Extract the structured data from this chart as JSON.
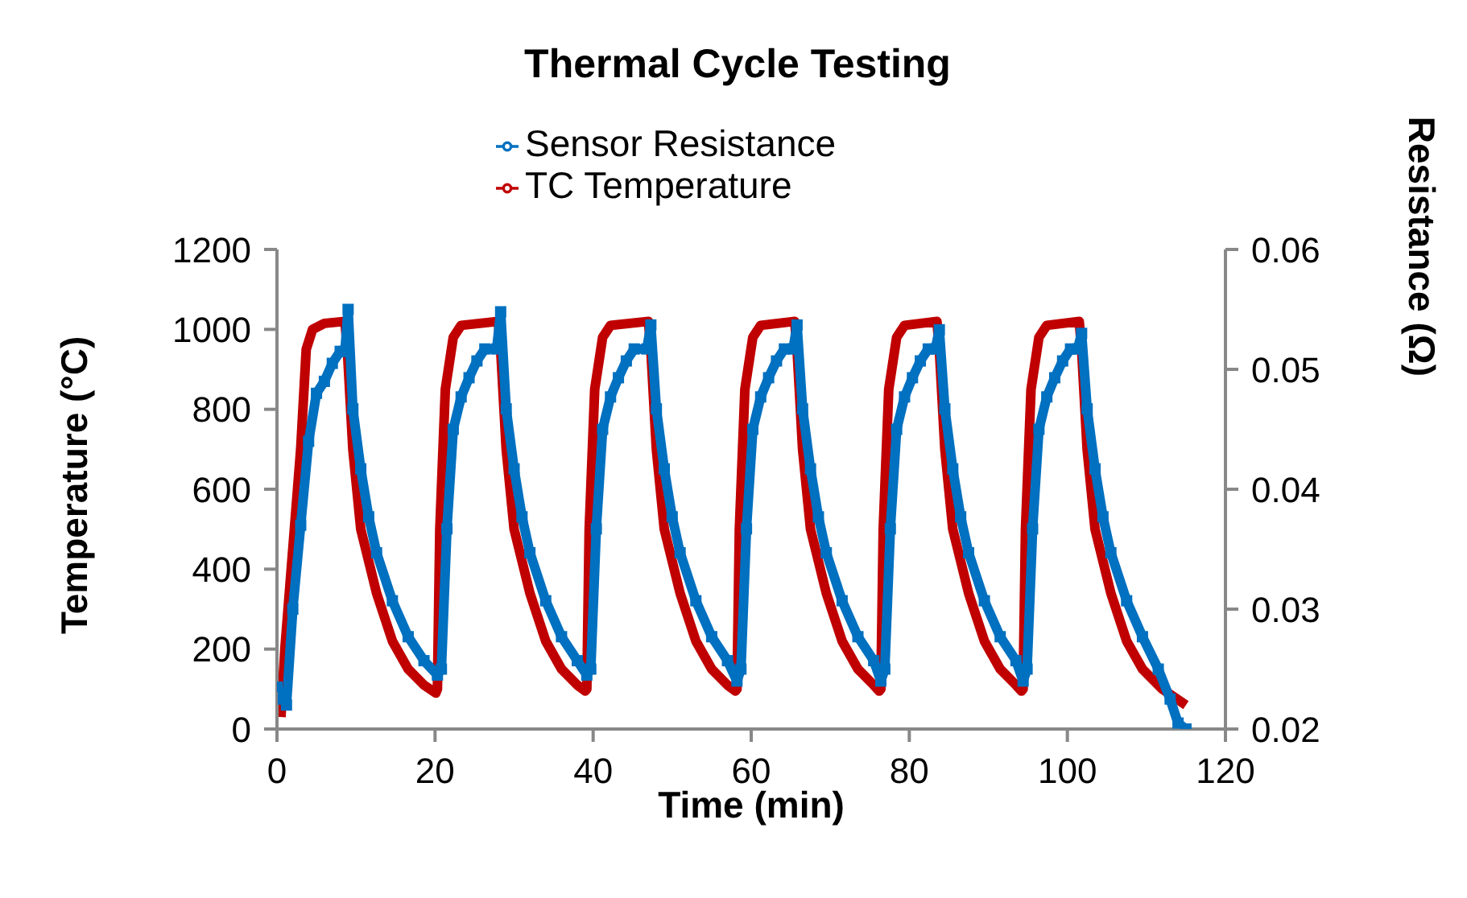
{
  "chart_data": {
    "type": "line",
    "title": "Thermal Cycle Testing",
    "xlabel": "Time (min)",
    "ylabel": "Temperature (°C)",
    "y2label": "Resistance (Ω)",
    "xlim": [
      0,
      120
    ],
    "xticks": [
      0,
      20,
      40,
      60,
      80,
      100,
      120
    ],
    "ylim": [
      0,
      1200
    ],
    "yticks": [
      0,
      200,
      400,
      600,
      800,
      1000,
      1200
    ],
    "y2lim": [
      0.02,
      0.06
    ],
    "y2ticks": [
      0.02,
      0.03,
      0.04,
      0.05,
      0.06
    ],
    "legend": "top",
    "series": [
      {
        "name": "TC Temperature",
        "color": "#c00000",
        "marker": "none",
        "x": [
          0.5,
          1,
          2,
          3,
          3.7,
          4.5,
          6,
          8.6,
          8.9,
          9.6,
          10.6,
          11.6,
          12.6,
          14.6,
          16.6,
          18.6,
          20.1,
          20.3,
          20.6,
          21.3,
          22.3,
          23.3,
          28,
          28.3,
          29,
          30,
          31,
          32,
          34,
          36,
          38,
          39,
          39.2,
          39.5,
          40.2,
          41.2,
          42.2,
          47,
          47.3,
          48,
          49,
          50,
          51,
          53,
          55,
          57,
          58,
          58.2,
          58.5,
          59.2,
          60.2,
          61.2,
          65.5,
          65.8,
          66.5,
          67.5,
          68.5,
          69.5,
          71.5,
          73.5,
          75.5,
          76.2,
          76.4,
          76.7,
          77.4,
          78.4,
          79.4,
          83.5,
          83.8,
          84.5,
          85.5,
          86.5,
          87.5,
          89.5,
          91.5,
          93.5,
          94.2,
          94.4,
          94.7,
          95.4,
          96.4,
          97.4,
          101.5,
          101.8,
          102.5,
          103.5,
          104.5,
          105.5,
          107.5,
          109.5,
          112,
          115
        ],
        "values": [
          30,
          200,
          450,
          700,
          950,
          1000,
          1015,
          1020,
          950,
          700,
          500,
          420,
          340,
          220,
          150,
          110,
          90,
          100,
          500,
          850,
          980,
          1010,
          1020,
          950,
          700,
          500,
          420,
          340,
          220,
          150,
          110,
          95,
          100,
          500,
          850,
          980,
          1010,
          1020,
          950,
          700,
          500,
          420,
          340,
          220,
          150,
          110,
          95,
          100,
          500,
          850,
          980,
          1010,
          1020,
          950,
          700,
          500,
          420,
          340,
          220,
          150,
          110,
          95,
          100,
          500,
          850,
          980,
          1010,
          1020,
          950,
          700,
          500,
          420,
          340,
          220,
          150,
          110,
          95,
          100,
          500,
          850,
          980,
          1010,
          1020,
          950,
          700,
          500,
          420,
          340,
          220,
          150,
          100,
          60
        ]
      },
      {
        "name": "Sensor Resistance",
        "color": "#0070c0",
        "marker": "square",
        "axis": "y2",
        "x": [
          0,
          0.8,
          1.2,
          2,
          3,
          4,
          5,
          6,
          7,
          8,
          8.6,
          9,
          9.6,
          10.6,
          11.6,
          12.6,
          14.6,
          16.6,
          18.6,
          20.3,
          20.8,
          21.5,
          22.3,
          23.3,
          24.3,
          25.3,
          26.3,
          27.8,
          28.3,
          29,
          30,
          31,
          32,
          34,
          36,
          38,
          39.2,
          39.7,
          40.4,
          41.2,
          42.2,
          43.2,
          44.2,
          45.2,
          46.8,
          47.3,
          48,
          49,
          50,
          51,
          53,
          55,
          57,
          58.2,
          58.7,
          59.4,
          60.2,
          61.2,
          62.2,
          63.2,
          64.2,
          65.3,
          65.8,
          66.5,
          67.5,
          68.5,
          69.5,
          71.5,
          73.5,
          75.5,
          76.4,
          76.9,
          77.6,
          78.4,
          79.4,
          80.4,
          81.4,
          82.4,
          83.3,
          83.8,
          84.5,
          85.5,
          86.5,
          87.5,
          89.5,
          91.5,
          93.5,
          94.4,
          94.9,
          95.6,
          96.4,
          97.4,
          98.4,
          99.4,
          100.4,
          101.3,
          101.8,
          102.5,
          103.5,
          104.5,
          105.5,
          107.5,
          109.5,
          111.5,
          113,
          114,
          115
        ],
        "values": [
          0.0235,
          0.0225,
          0.022,
          0.03,
          0.037,
          0.044,
          0.048,
          0.049,
          0.0505,
          0.0515,
          0.0515,
          0.055,
          0.0467,
          0.0417,
          0.0377,
          0.0347,
          0.0307,
          0.0277,
          0.0257,
          0.0245,
          0.025,
          0.0367,
          0.045,
          0.0477,
          0.0493,
          0.0507,
          0.0517,
          0.0517,
          0.0548,
          0.0467,
          0.0417,
          0.0377,
          0.0347,
          0.0307,
          0.0277,
          0.0257,
          0.0245,
          0.025,
          0.0367,
          0.045,
          0.0477,
          0.0493,
          0.0507,
          0.0517,
          0.0517,
          0.0537,
          0.0467,
          0.0417,
          0.0377,
          0.0347,
          0.0307,
          0.0277,
          0.0257,
          0.024,
          0.025,
          0.0367,
          0.045,
          0.0477,
          0.0493,
          0.0507,
          0.0517,
          0.0517,
          0.0537,
          0.0467,
          0.0417,
          0.0377,
          0.0347,
          0.0307,
          0.0277,
          0.0257,
          0.024,
          0.025,
          0.0367,
          0.045,
          0.0477,
          0.0493,
          0.0507,
          0.0517,
          0.0517,
          0.0533,
          0.0467,
          0.0417,
          0.0377,
          0.0347,
          0.0307,
          0.0277,
          0.0257,
          0.024,
          0.025,
          0.0367,
          0.045,
          0.0477,
          0.0493,
          0.0507,
          0.0517,
          0.0517,
          0.053,
          0.0467,
          0.0417,
          0.0377,
          0.0347,
          0.0307,
          0.0277,
          0.025,
          0.0225,
          0.0205,
          0.02
        ]
      }
    ]
  }
}
